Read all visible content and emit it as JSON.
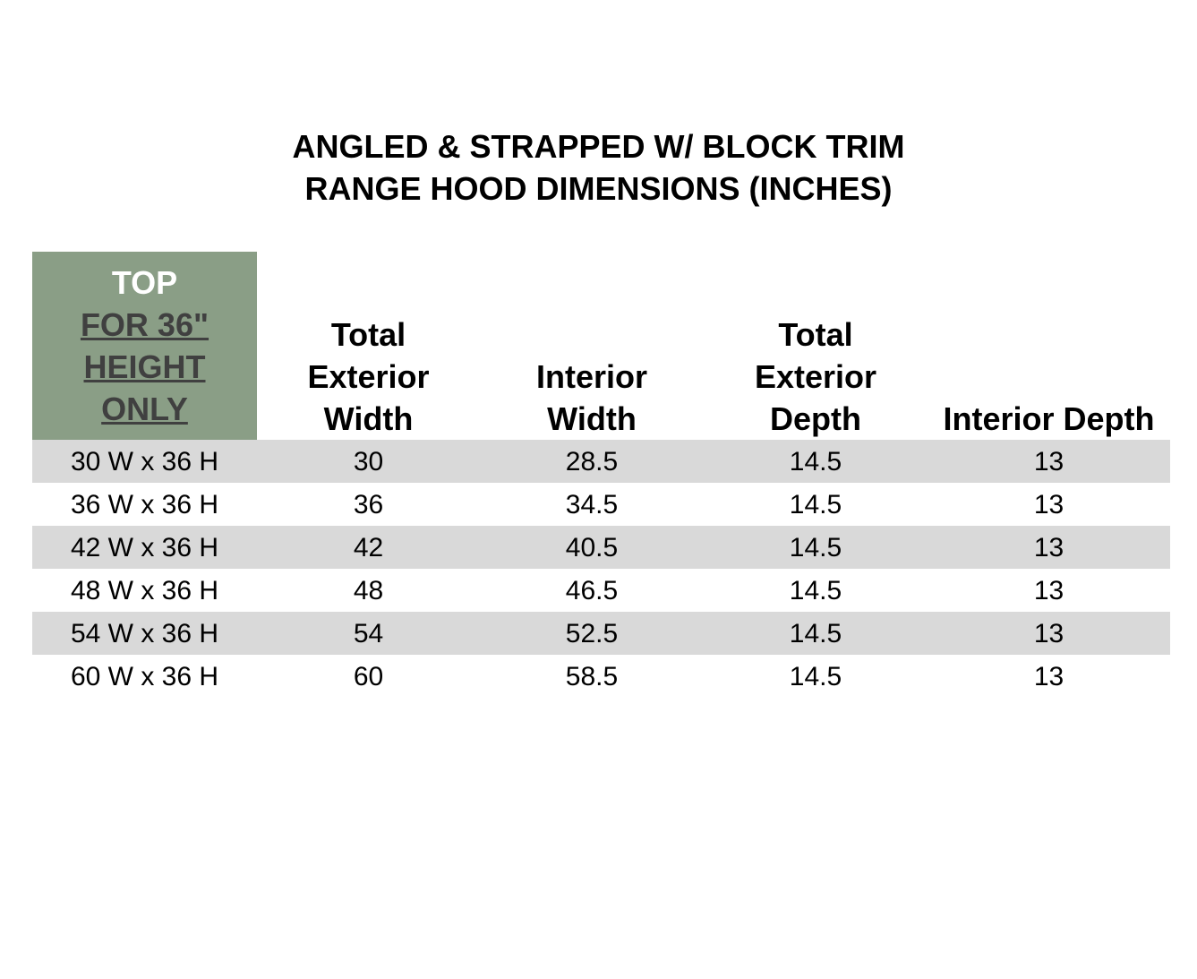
{
  "title": {
    "lines": [
      "ANGLED & STRAPPED W/ BLOCK TRIM",
      "RANGE HOOD DIMENSIONS (INCHES)"
    ]
  },
  "table": {
    "header": {
      "first": {
        "top": "TOP",
        "underlined": [
          "FOR 36\"",
          "HEIGHT",
          "ONLY"
        ]
      },
      "columns": [
        [
          "Total",
          "Exterior",
          "Width"
        ],
        [
          "Interior",
          "Width"
        ],
        [
          "Total",
          "Exterior",
          "Depth"
        ],
        [
          "Interior Depth"
        ]
      ]
    },
    "rows": [
      [
        "30 W x 36 H",
        30,
        28.5,
        14.5,
        13
      ],
      [
        "36 W x 36 H",
        36,
        34.5,
        14.5,
        13
      ],
      [
        "42 W x 36 H",
        42,
        40.5,
        14.5,
        13
      ],
      [
        "48 W x 36 H",
        48,
        46.5,
        14.5,
        13
      ],
      [
        "54 W x 36 H",
        54,
        52.5,
        14.5,
        13
      ],
      [
        "60 W x 36 H",
        60,
        58.5,
        14.5,
        13
      ]
    ]
  }
}
